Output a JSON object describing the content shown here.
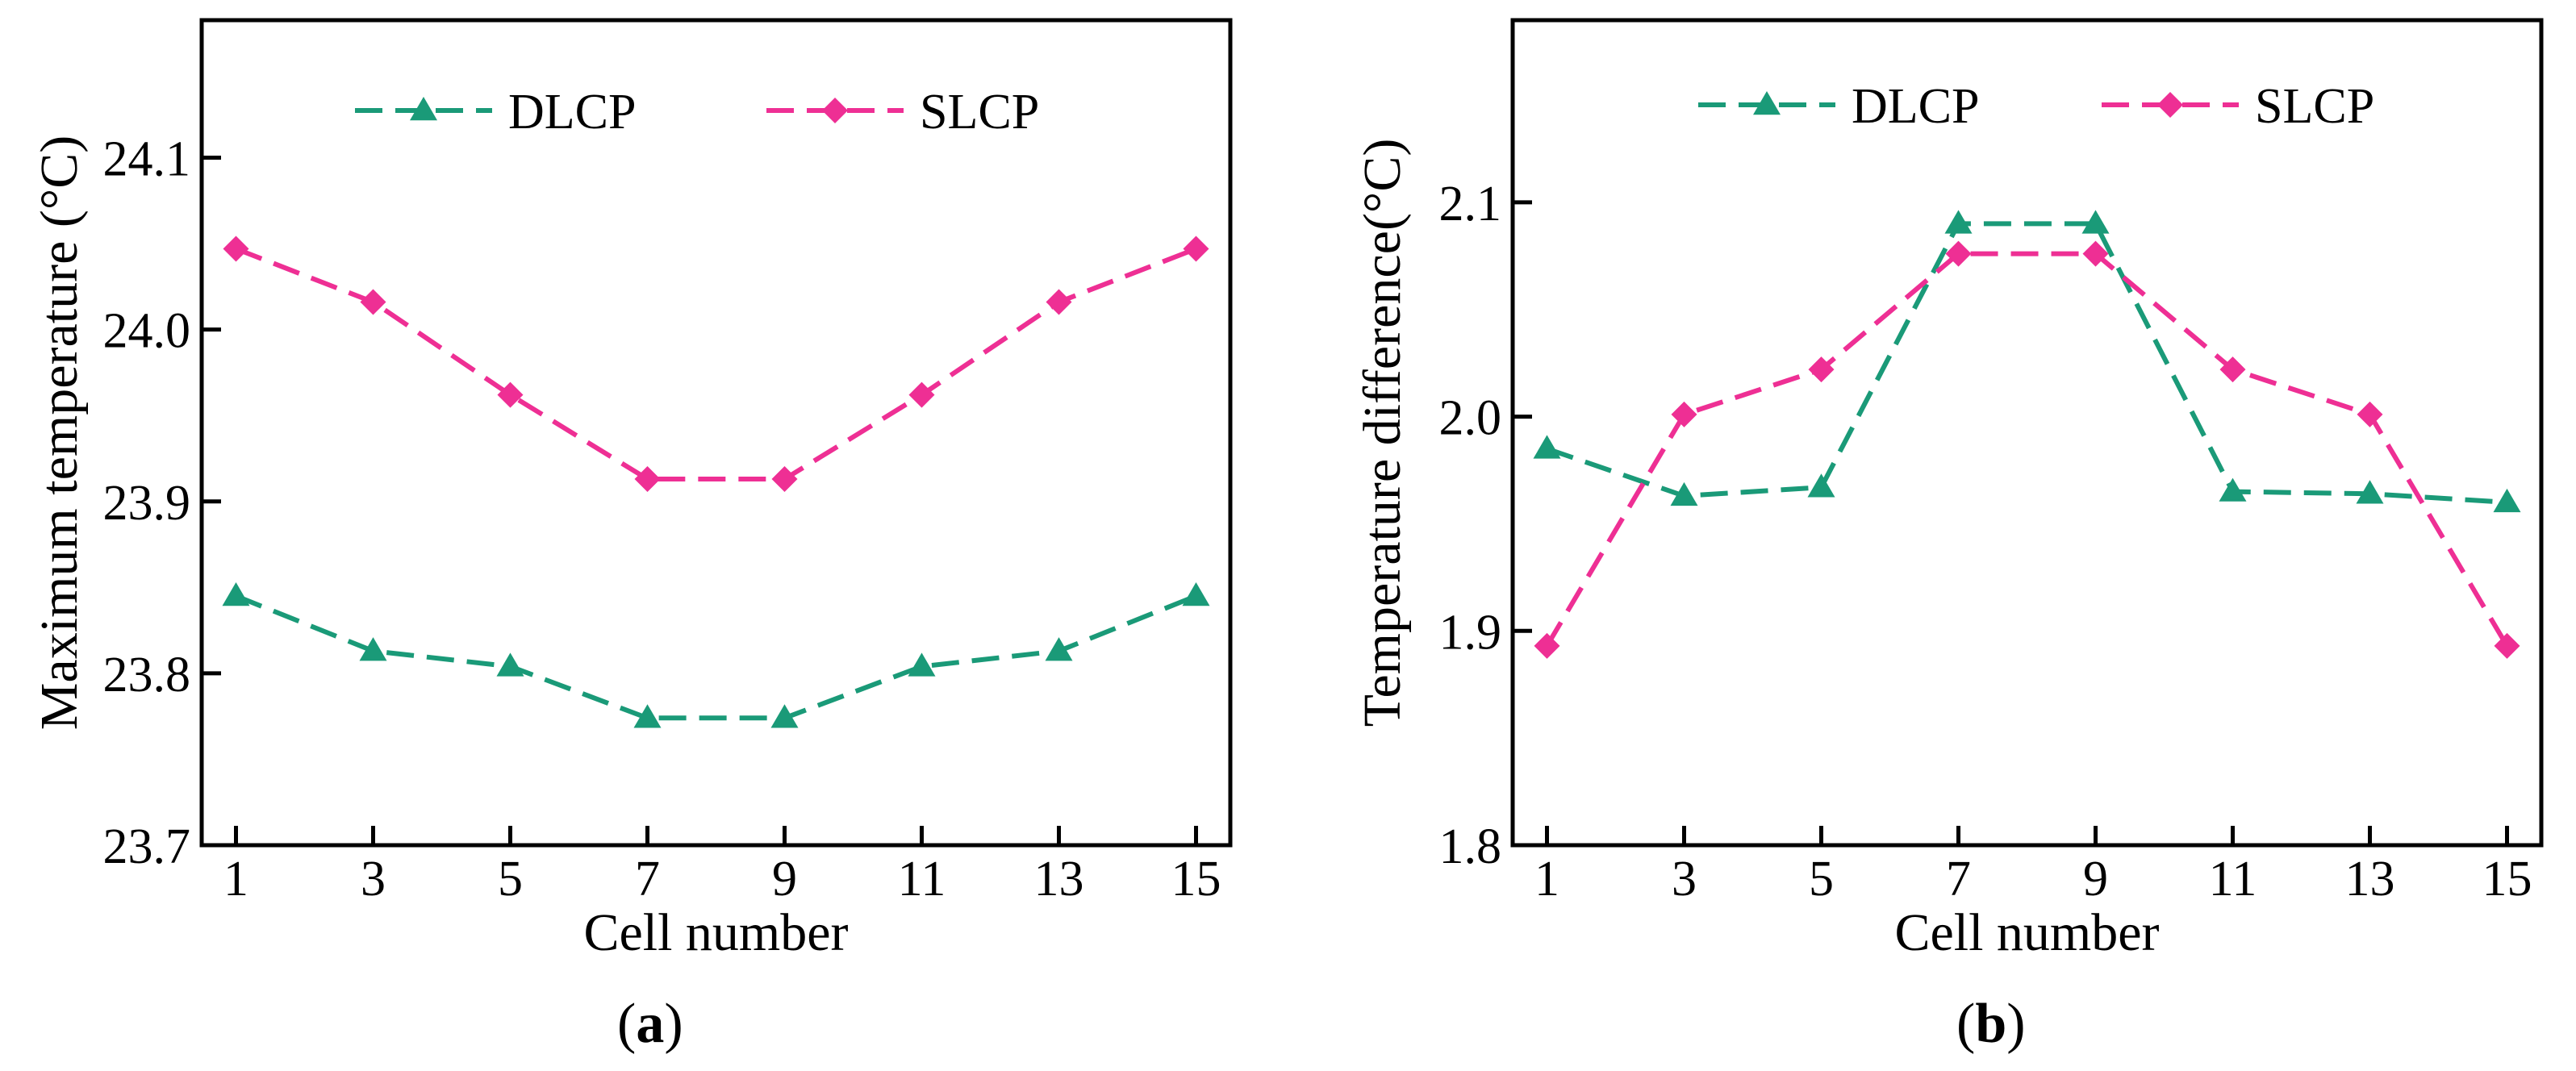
{
  "colors": {
    "dlcp": "#1a9a78",
    "slcp": "#ee2f94",
    "axis": "#000000"
  },
  "chart_data": [
    {
      "type": "line",
      "xlabel": "Cell number",
      "ylabel": "Maximum temperature (°C)",
      "caption_letter": "a",
      "caption_open": "(",
      "caption_close": ")",
      "xlim": [
        0.5,
        15.5
      ],
      "ylim": [
        23.7,
        24.18
      ],
      "x_ticks": [
        1,
        3,
        5,
        7,
        9,
        11,
        13,
        15
      ],
      "x_tick_labels": [
        "1",
        "3",
        "5",
        "7",
        "9",
        "11",
        "13",
        "15"
      ],
      "y_ticks": [
        23.7,
        23.8,
        23.9,
        24.0,
        24.1
      ],
      "y_tick_labels": [
        "23.7",
        "23.8",
        "23.9",
        "24.0",
        "24.1"
      ],
      "legend_position": "top",
      "series": [
        {
          "name": "DLCP",
          "marker": "triangle",
          "x": [
            1,
            3,
            5,
            7,
            9,
            11,
            13,
            15
          ],
          "values": [
            23.845,
            23.813,
            23.804,
            23.774,
            23.774,
            23.804,
            23.813,
            23.845
          ]
        },
        {
          "name": "SLCP",
          "marker": "diamond",
          "x": [
            1,
            3,
            5,
            7,
            9,
            11,
            13,
            15
          ],
          "values": [
            24.047,
            24.016,
            23.962,
            23.913,
            23.913,
            23.962,
            24.016,
            24.047
          ]
        }
      ]
    },
    {
      "type": "line",
      "xlabel": "Cell number",
      "ylabel": "Temperature difference(°C)",
      "caption_letter": "b",
      "caption_open": "(",
      "caption_close": ")",
      "xlim": [
        0.5,
        15.5
      ],
      "ylim": [
        1.8,
        2.185
      ],
      "x_ticks": [
        1,
        3,
        5,
        7,
        9,
        11,
        13,
        15
      ],
      "x_tick_labels": [
        "1",
        "3",
        "5",
        "7",
        "9",
        "11",
        "13",
        "15"
      ],
      "y_ticks": [
        1.8,
        1.9,
        2.0,
        2.1
      ],
      "y_tick_labels": [
        "1.8",
        "1.9",
        "2.0",
        "2.1"
      ],
      "legend_position": "top",
      "series": [
        {
          "name": "DLCP",
          "marker": "triangle",
          "x": [
            1,
            3,
            5,
            7,
            9,
            11,
            13,
            15
          ],
          "values": [
            1.985,
            1.963,
            1.967,
            2.09,
            2.09,
            1.965,
            1.964,
            1.96
          ]
        },
        {
          "name": "SLCP",
          "marker": "diamond",
          "x": [
            1,
            3,
            5,
            7,
            9,
            11,
            13,
            15
          ],
          "values": [
            1.893,
            2.001,
            2.022,
            2.076,
            2.076,
            2.022,
            2.001,
            1.893
          ]
        }
      ]
    }
  ]
}
